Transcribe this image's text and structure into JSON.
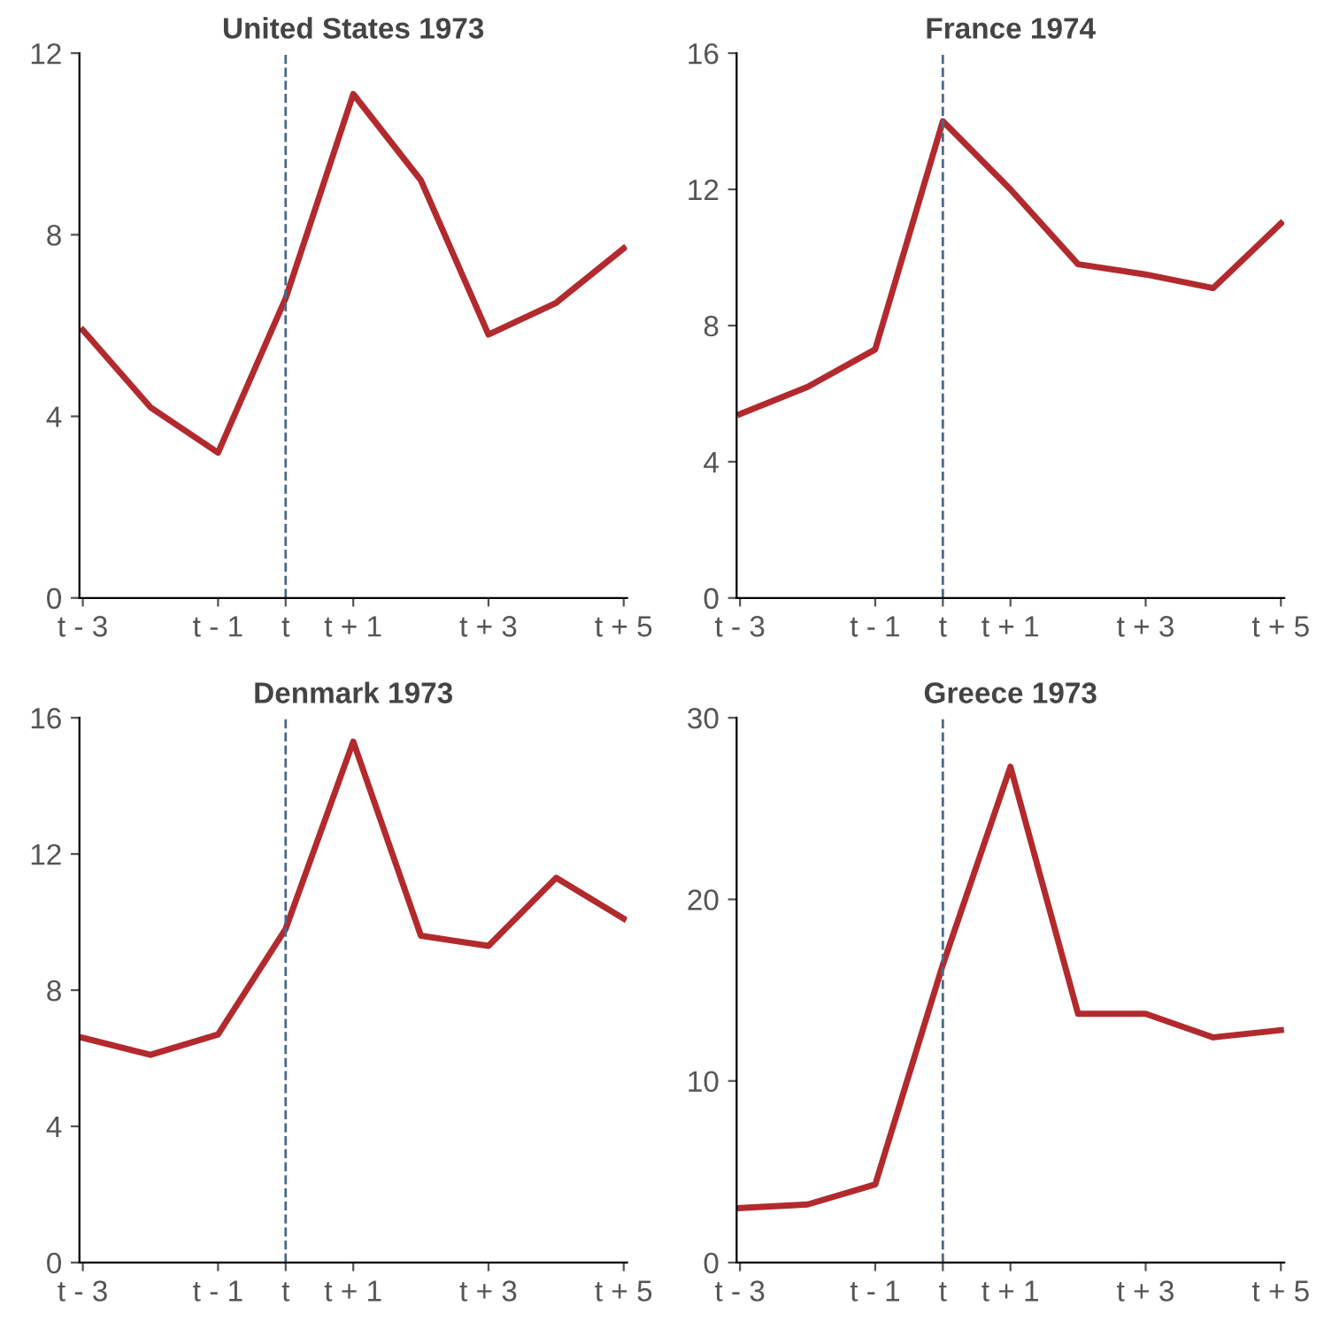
{
  "chart_data": [
    {
      "type": "line",
      "title": "United States 1973",
      "categories": [
        "t - 3",
        null,
        "t - 1",
        "t",
        "t + 1",
        null,
        "t + 3",
        null,
        "t + 5"
      ],
      "series": [
        {
          "color": "#b22a2e",
          "values": [
            5.9,
            4.2,
            3.2,
            6.6,
            11.1,
            9.2,
            5.8,
            6.5,
            7.7
          ]
        }
      ],
      "ylim": [
        0,
        12
      ],
      "yticks": [
        0,
        4,
        8,
        12
      ],
      "grid": false,
      "legend": false,
      "marker": "none",
      "line_style": "solid",
      "ref_lines": [
        {
          "axis": "x",
          "value": "t",
          "color": "#4a6a8a",
          "line_style": "dashed"
        }
      ]
    },
    {
      "type": "line",
      "title": "France 1974",
      "categories": [
        "t - 3",
        null,
        "t - 1",
        "t",
        "t + 1",
        null,
        "t + 3",
        null,
        "t + 5"
      ],
      "series": [
        {
          "color": "#b22a2e",
          "values": [
            5.4,
            6.2,
            7.3,
            14.0,
            12.0,
            9.8,
            9.5,
            9.1,
            11.0
          ]
        }
      ],
      "ylim": [
        0,
        16
      ],
      "yticks": [
        0,
        4,
        8,
        12,
        16
      ],
      "grid": false,
      "legend": false,
      "marker": "none",
      "line_style": "solid",
      "ref_lines": [
        {
          "axis": "x",
          "value": "t",
          "color": "#4a6a8a",
          "line_style": "dashed"
        }
      ]
    },
    {
      "type": "line",
      "title": "Denmark 1973",
      "categories": [
        "t - 3",
        null,
        "t - 1",
        "t",
        "t + 1",
        null,
        "t + 3",
        null,
        "t + 5"
      ],
      "series": [
        {
          "color": "#b22a2e",
          "values": [
            6.6,
            6.1,
            6.7,
            9.8,
            15.3,
            9.6,
            9.3,
            11.3,
            10.1
          ]
        }
      ],
      "ylim": [
        0,
        16
      ],
      "yticks": [
        0,
        4,
        8,
        12,
        16
      ],
      "grid": false,
      "legend": false,
      "marker": "none",
      "line_style": "solid",
      "ref_lines": [
        {
          "axis": "x",
          "value": "t",
          "color": "#4a6a8a",
          "line_style": "dashed"
        }
      ]
    },
    {
      "type": "line",
      "title": "Greece 1973",
      "categories": [
        "t - 3",
        null,
        "t - 1",
        "t",
        "t + 1",
        null,
        "t + 3",
        null,
        "t + 5"
      ],
      "series": [
        {
          "color": "#b22a2e",
          "values": [
            3.0,
            3.2,
            4.3,
            16.4,
            27.3,
            13.7,
            13.7,
            12.4,
            12.8
          ]
        }
      ],
      "ylim": [
        0,
        30
      ],
      "yticks": [
        0,
        10,
        20,
        30
      ],
      "grid": false,
      "legend": false,
      "marker": "none",
      "line_style": "solid",
      "ref_lines": [
        {
          "axis": "x",
          "value": "t",
          "color": "#4a6a8a",
          "line_style": "dashed"
        }
      ]
    }
  ]
}
